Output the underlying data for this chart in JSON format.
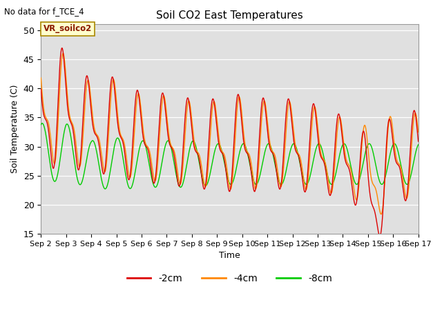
{
  "title": "Soil CO2 East Temperatures",
  "no_data_label": "No data for f_TCE_4",
  "vr_label": "VR_soilco2",
  "ylabel": "Soil Temperature (C)",
  "xlabel": "Time",
  "ylim": [
    15,
    51
  ],
  "yticks": [
    15,
    20,
    25,
    30,
    35,
    40,
    45,
    50
  ],
  "x_start_day": 2,
  "x_end_day": 17,
  "x_tick_days": [
    2,
    3,
    4,
    5,
    6,
    7,
    8,
    9,
    10,
    11,
    12,
    13,
    14,
    15,
    16,
    17
  ],
  "color_2cm": "#dd0000",
  "color_4cm": "#ff8800",
  "color_8cm": "#00cc00",
  "bg_color": "#e0e0e0",
  "legend_labels": [
    "-2cm",
    "-4cm",
    "-8cm"
  ],
  "n_points": 2000,
  "figwidth": 6.4,
  "figheight": 4.8,
  "dpi": 100
}
